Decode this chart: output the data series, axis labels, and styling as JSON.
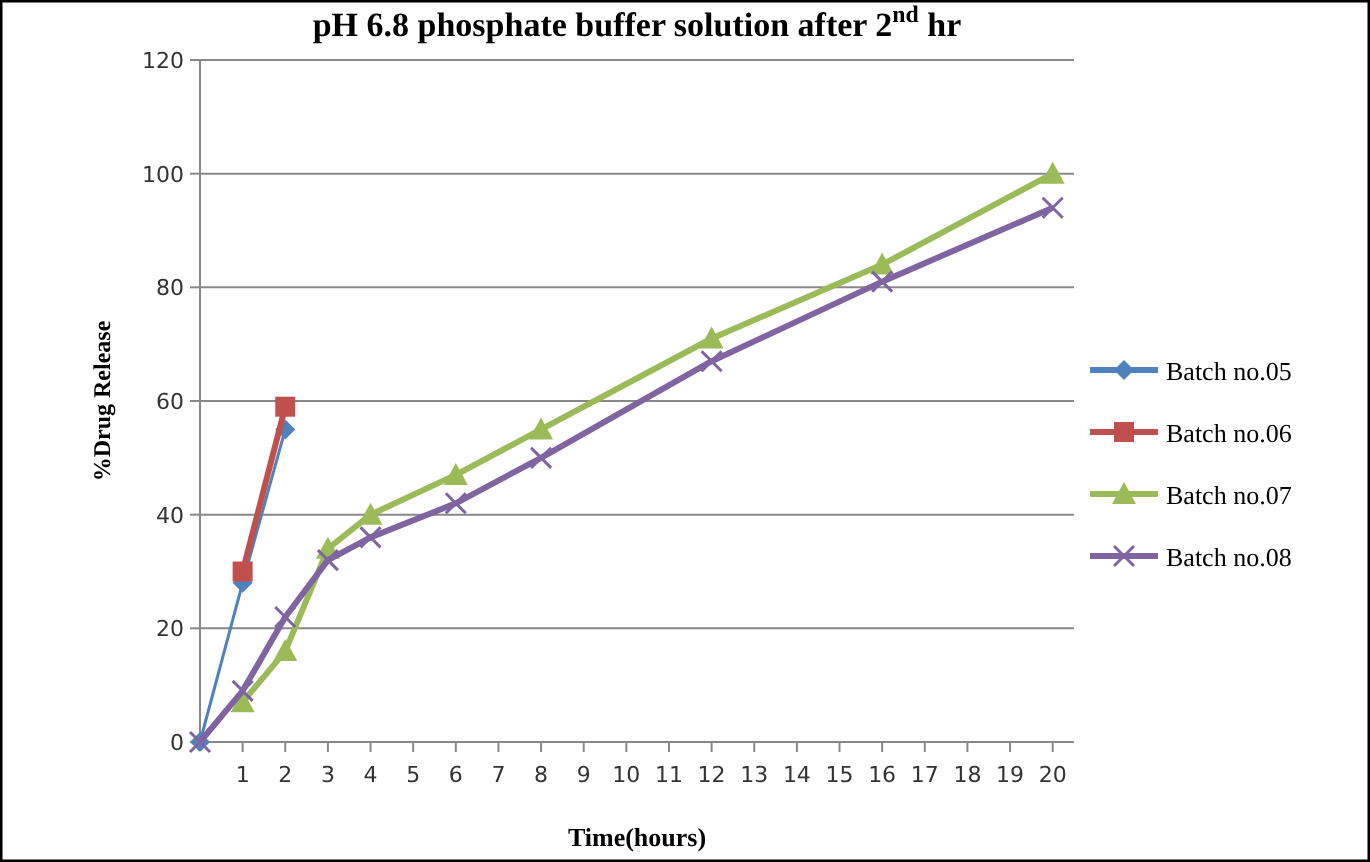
{
  "chart_data": {
    "type": "line",
    "title": "pH 6.8 phosphate buffer solution after 2$^{nd}$ hr",
    "xlabel": "Time(hours)",
    "ylabel": "%Drug Release",
    "xlim": [
      0,
      20.5
    ],
    "xticks": [
      1,
      2,
      3,
      4,
      5,
      6,
      7,
      8,
      9,
      10,
      11,
      12,
      13,
      14,
      15,
      16,
      17,
      18,
      19,
      20
    ],
    "ylim": [
      0,
      120
    ],
    "yticks": [
      0,
      20,
      40,
      60,
      80,
      100,
      120
    ],
    "grid": "y",
    "legend": "right",
    "series": [
      {
        "name": "Batch no.05",
        "color": "#4f81bd",
        "marker": "diamond",
        "x": [
          0,
          1,
          2
        ],
        "values": [
          0,
          28,
          55
        ]
      },
      {
        "name": "Batch no.06",
        "color": "#c0504d",
        "marker": "square",
        "x": [
          1,
          2
        ],
        "values": [
          30,
          59
        ]
      },
      {
        "name": "Batch no.07",
        "color": "#9bbb59",
        "marker": "triangle",
        "x": [
          1,
          2,
          3,
          4,
          6,
          8,
          12,
          16,
          20
        ],
        "values": [
          7,
          16,
          34,
          40,
          47,
          55,
          71,
          84,
          100
        ]
      },
      {
        "name": "Batch no.08",
        "color": "#8064a2",
        "marker": "cross",
        "x": [
          0,
          1,
          2,
          3,
          4,
          6,
          8,
          12,
          16,
          20
        ],
        "values": [
          0,
          9,
          22,
          32,
          36,
          42,
          50,
          67,
          81,
          94
        ]
      }
    ]
  }
}
